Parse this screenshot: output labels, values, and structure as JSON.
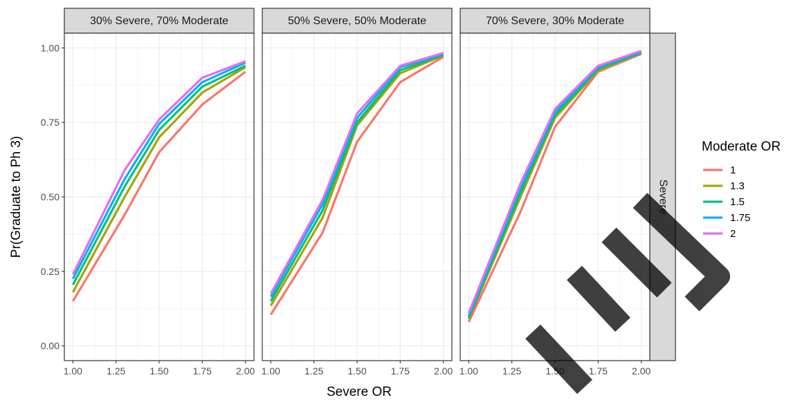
{
  "chart_data": {
    "type": "line",
    "title": "",
    "xlabel": "Severe OR",
    "ylabel": "Pr(Graduate to Ph 3)",
    "x": [
      1.0,
      1.3,
      1.5,
      1.75,
      2.0
    ],
    "xlim": [
      1.0,
      2.0
    ],
    "ylim": [
      0.0,
      1.0
    ],
    "x_ticks": [
      1.0,
      1.25,
      1.5,
      1.75,
      2.0
    ],
    "x_tick_labels": [
      "1.00",
      "1.25",
      "1.50",
      "1.75",
      "2.00"
    ],
    "y_ticks": [
      0.0,
      0.25,
      0.5,
      0.75,
      1.0
    ],
    "y_tick_labels": [
      "0.00",
      "0.25",
      "0.50",
      "0.75",
      "1.00"
    ],
    "grid": true,
    "row_strip_label": "Severe",
    "legend": {
      "title": "Moderate OR",
      "position": "right",
      "entries": [
        "1",
        "1.3",
        "1.5",
        "1.75",
        "2"
      ]
    },
    "series_colors": [
      "#F8766D",
      "#A3A500",
      "#00BF7D",
      "#00B0F6",
      "#E76BF3"
    ],
    "panels": [
      {
        "label": "30% Severe, 70% Moderate",
        "series": [
          {
            "name": "1",
            "values": [
              0.15,
              0.44,
              0.65,
              0.81,
              0.92
            ]
          },
          {
            "name": "1.3",
            "values": [
              0.18,
              0.5,
              0.7,
              0.85,
              0.935
            ]
          },
          {
            "name": "1.5",
            "values": [
              0.205,
              0.535,
              0.725,
              0.87,
              0.94
            ]
          },
          {
            "name": "1.75",
            "values": [
              0.225,
              0.56,
              0.745,
              0.885,
              0.95
            ]
          },
          {
            "name": "2",
            "values": [
              0.24,
              0.59,
              0.76,
              0.9,
              0.955
            ]
          }
        ]
      },
      {
        "label": "50% Severe, 50% Moderate",
        "series": [
          {
            "name": "1",
            "values": [
              0.105,
              0.38,
              0.685,
              0.885,
              0.97
            ]
          },
          {
            "name": "1.3",
            "values": [
              0.135,
              0.43,
              0.74,
              0.915,
              0.975
            ]
          },
          {
            "name": "1.5",
            "values": [
              0.15,
              0.455,
              0.75,
              0.925,
              0.977
            ]
          },
          {
            "name": "1.75",
            "values": [
              0.165,
              0.475,
              0.765,
              0.935,
              0.98
            ]
          },
          {
            "name": "2",
            "values": [
              0.175,
              0.49,
              0.78,
              0.94,
              0.983
            ]
          }
        ]
      },
      {
        "label": "70% Severe, 30% Moderate",
        "series": [
          {
            "name": "1",
            "values": [
              0.08,
              0.45,
              0.735,
              0.92,
              0.98
            ]
          },
          {
            "name": "1.3",
            "values": [
              0.09,
              0.5,
              0.765,
              0.925,
              0.982
            ]
          },
          {
            "name": "1.5",
            "values": [
              0.095,
              0.515,
              0.775,
              0.93,
              0.984
            ]
          },
          {
            "name": "1.75",
            "values": [
              0.1,
              0.53,
              0.785,
              0.935,
              0.986
            ]
          },
          {
            "name": "2",
            "values": [
              0.11,
              0.545,
              0.795,
              0.94,
              0.99
            ]
          }
        ]
      }
    ]
  }
}
